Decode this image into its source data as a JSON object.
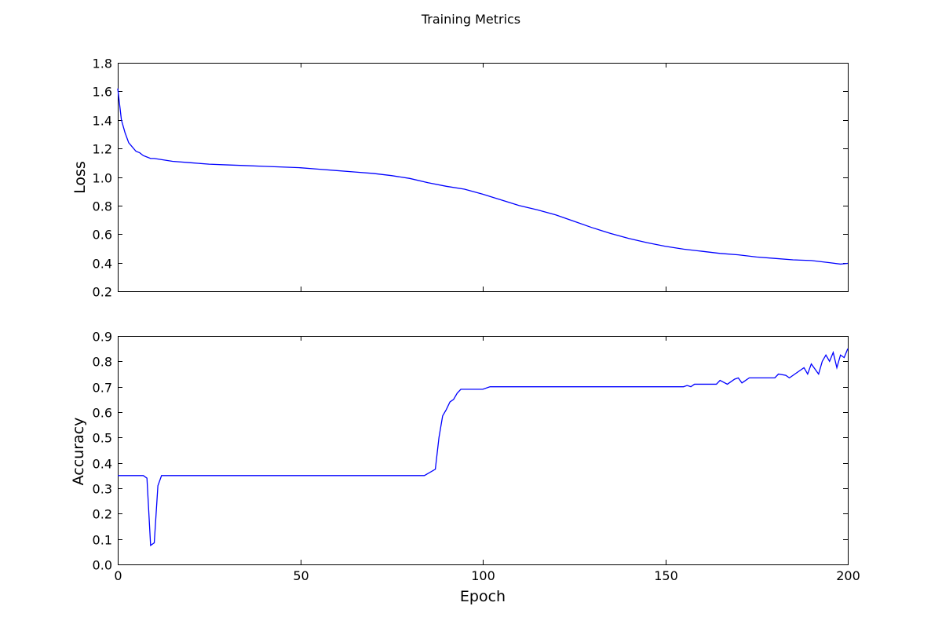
{
  "chart_data": {
    "type": "line",
    "title": "Training Metrics",
    "xlabel": "Epoch",
    "xlim": [
      0,
      200
    ],
    "xticks": [
      0,
      50,
      100,
      150,
      200
    ],
    "grid": false,
    "line_color": "#0000ff",
    "subplots": [
      {
        "ylabel": "Loss",
        "ylim": [
          0.2,
          1.8
        ],
        "yticks": [
          0.2,
          0.4,
          0.6,
          0.8,
          1.0,
          1.2,
          1.4,
          1.6,
          1.8
        ],
        "series": [
          {
            "x": [
              0,
              1,
              2,
              3,
              4,
              5,
              6,
              7,
              8,
              9,
              10,
              15,
              20,
              25,
              30,
              35,
              40,
              45,
              50,
              55,
              60,
              65,
              70,
              75,
              80,
              85,
              90,
              95,
              100,
              105,
              110,
              115,
              120,
              125,
              130,
              135,
              140,
              145,
              150,
              155,
              160,
              165,
              170,
              175,
              180,
              185,
              190,
              195,
              198,
              200
            ],
            "values": [
              1.62,
              1.4,
              1.31,
              1.24,
              1.21,
              1.18,
              1.17,
              1.15,
              1.14,
              1.13,
              1.13,
              1.11,
              1.1,
              1.09,
              1.085,
              1.08,
              1.075,
              1.07,
              1.065,
              1.055,
              1.045,
              1.035,
              1.025,
              1.01,
              0.99,
              0.96,
              0.935,
              0.915,
              0.88,
              0.84,
              0.8,
              0.77,
              0.735,
              0.69,
              0.645,
              0.605,
              0.57,
              0.54,
              0.515,
              0.495,
              0.48,
              0.465,
              0.455,
              0.44,
              0.43,
              0.42,
              0.415,
              0.4,
              0.39,
              0.395
            ]
          }
        ]
      },
      {
        "ylabel": "Accuracy",
        "ylim": [
          0.0,
          0.9
        ],
        "yticks": [
          0.0,
          0.1,
          0.2,
          0.3,
          0.4,
          0.5,
          0.6,
          0.7,
          0.8,
          0.9
        ],
        "series": [
          {
            "x": [
              0,
              7,
              8,
              9,
              10,
              11,
              12,
              30,
              50,
              70,
              84,
              87,
              88,
              89,
              90,
              91,
              92,
              93,
              94,
              95,
              100,
              102,
              103,
              120,
              150,
              155,
              156,
              157,
              158,
              164,
              165,
              167,
              169,
              170,
              171,
              173,
              176,
              179,
              180,
              181,
              183,
              184,
              186,
              187,
              188,
              189,
              190,
              192,
              193,
              194,
              195,
              196,
              197,
              198,
              199,
              200
            ],
            "values": [
              0.35,
              0.35,
              0.34,
              0.075,
              0.085,
              0.31,
              0.35,
              0.35,
              0.35,
              0.35,
              0.35,
              0.375,
              0.5,
              0.585,
              0.61,
              0.64,
              0.65,
              0.675,
              0.69,
              0.69,
              0.69,
              0.7,
              0.7,
              0.7,
              0.7,
              0.7,
              0.705,
              0.7,
              0.71,
              0.71,
              0.725,
              0.71,
              0.73,
              0.735,
              0.715,
              0.735,
              0.735,
              0.735,
              0.735,
              0.75,
              0.745,
              0.735,
              0.755,
              0.765,
              0.775,
              0.75,
              0.79,
              0.75,
              0.8,
              0.825,
              0.8,
              0.835,
              0.775,
              0.825,
              0.815,
              0.85
            ]
          }
        ]
      }
    ]
  }
}
